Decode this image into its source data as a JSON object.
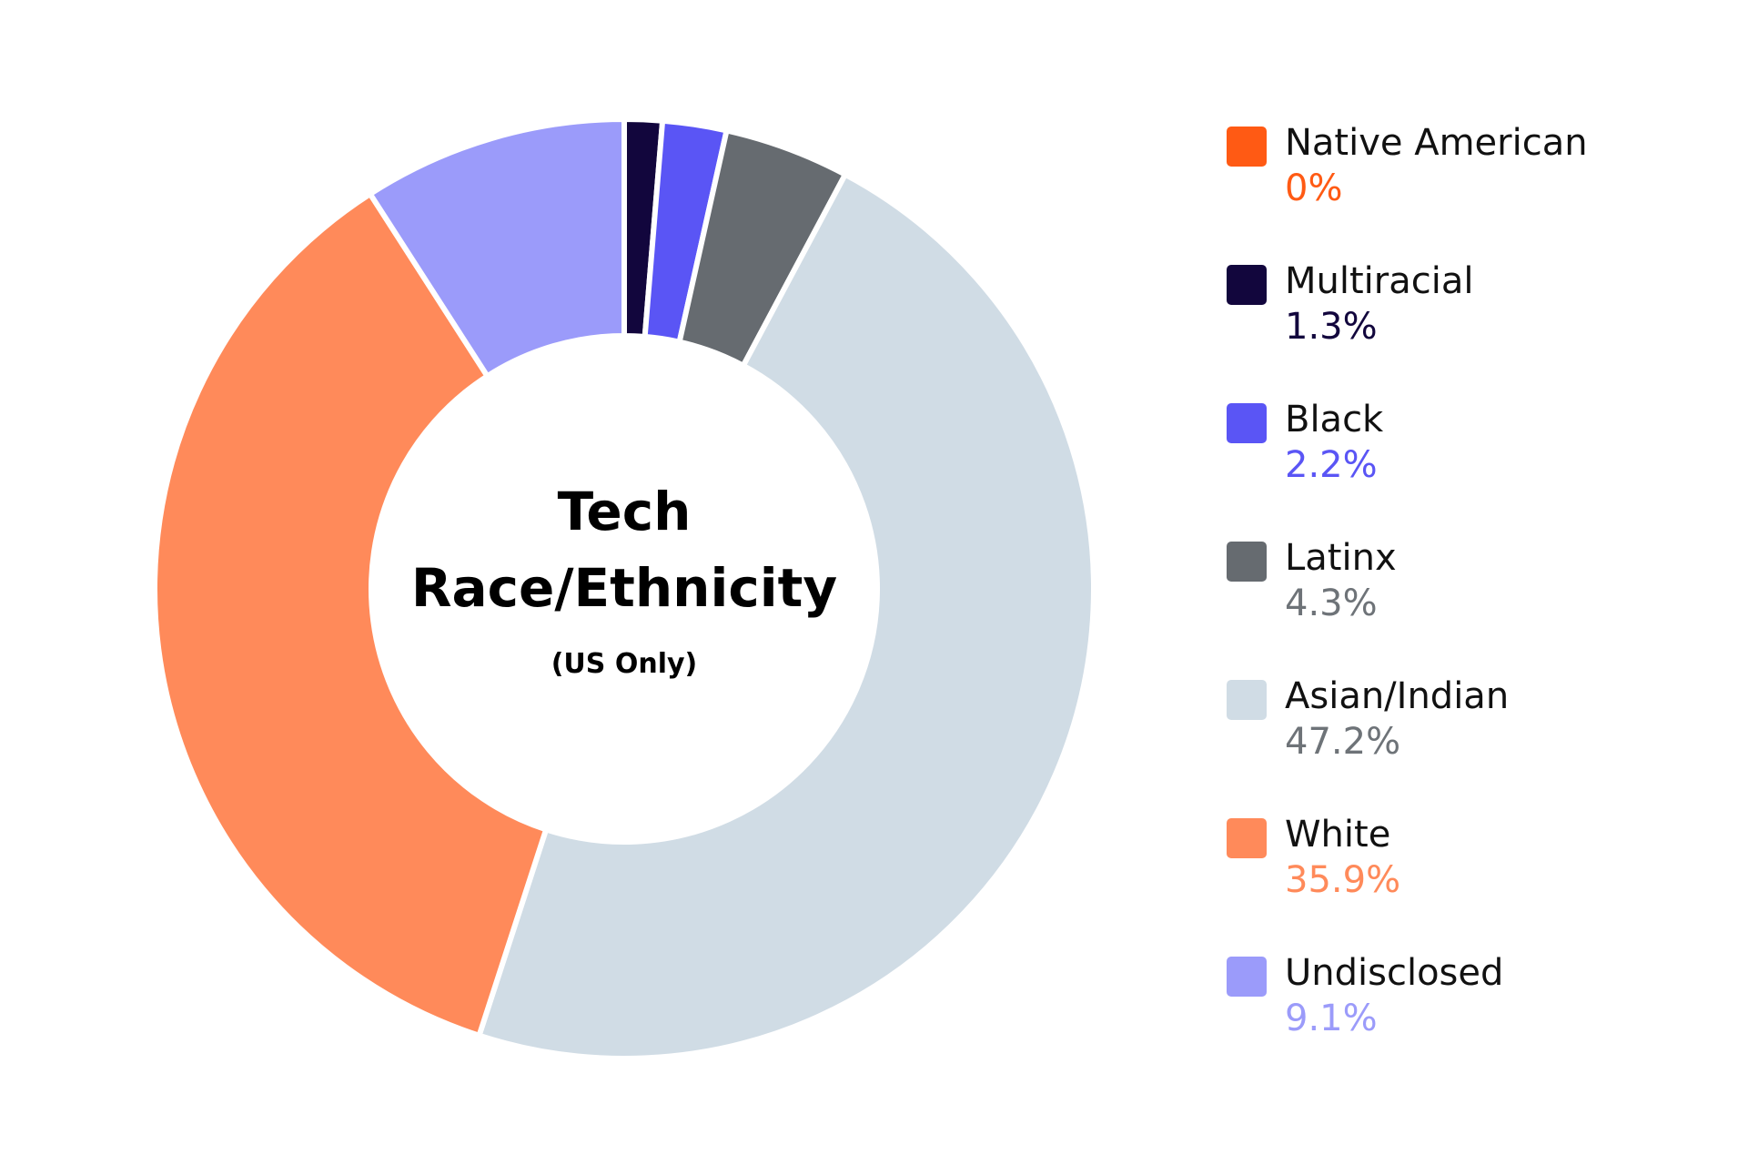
{
  "chart_data": {
    "type": "pie",
    "title": "Tech\nRace/Ethnicity",
    "title_lines": [
      "Tech",
      "Race/Ethnicity"
    ],
    "subtitle": "(US Only)",
    "legend_position": "right",
    "slices": [
      {
        "label": "Native American",
        "value": 0,
        "display": "0%",
        "color": "#FF5A14",
        "value_color": "#FF5A14"
      },
      {
        "label": "Multiracial",
        "value": 1.3,
        "display": "1.3%",
        "color": "#12063D",
        "value_color": "#12063D"
      },
      {
        "label": "Black",
        "value": 2.2,
        "display": "2.2%",
        "color": "#5A55F5",
        "value_color": "#5A55F5"
      },
      {
        "label": "Latinx",
        "value": 4.3,
        "display": "4.3%",
        "color": "#666B70",
        "value_color": "#6E7378"
      },
      {
        "label": "Asian/Indian",
        "value": 47.2,
        "display": "47.2%",
        "color": "#D0DCE5",
        "value_color": "#6E7378"
      },
      {
        "label": "White",
        "value": 35.9,
        "display": "35.9%",
        "color": "#FF8A5A",
        "value_color": "#FF8A5A"
      },
      {
        "label": "Undisclosed",
        "value": 9.1,
        "display": "9.1%",
        "color": "#9B9BFA",
        "value_color": "#9B9BFA"
      }
    ]
  }
}
